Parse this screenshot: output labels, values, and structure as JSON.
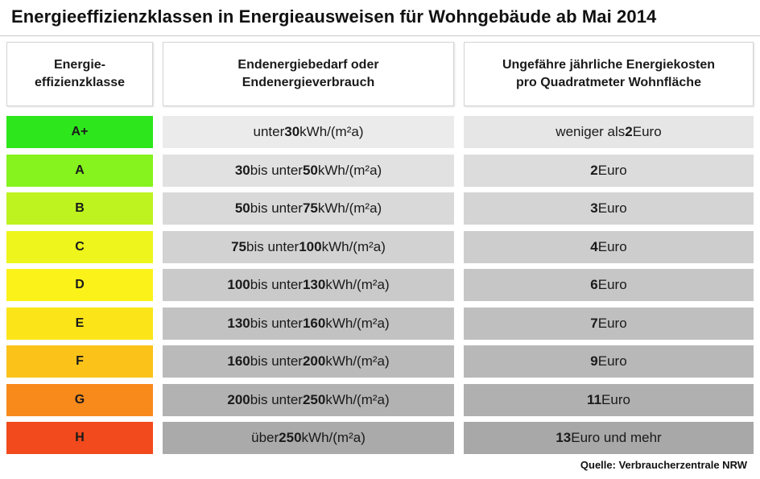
{
  "title": "Energieeffizienzklassen in Energieausweisen für Wohngebäude ab Mai 2014",
  "header": {
    "col1": [
      "Energie-",
      "effizienzklasse"
    ],
    "col2": [
      "Endenergiebedarf oder",
      "Endenergieverbrauch"
    ],
    "col3": [
      "Ungefähre jährliche Energiekosten",
      "pro Quadratmeter Wohnfläche"
    ]
  },
  "rows": [
    {
      "class": "A+",
      "class_color": "#2ee61c",
      "value_bg": "#ebebeb",
      "cost_bg": "#e6e6e6",
      "demand": "unter 30 kWh/(m²a)",
      "cost": "weniger als 2 Euro"
    },
    {
      "class": "A",
      "class_color": "#86f21e",
      "value_bg": "#e1e1e1",
      "cost_bg": "#dcdcdc",
      "demand": "30 bis unter 50 kWh/(m²a)",
      "cost": "2 Euro"
    },
    {
      "class": "B",
      "class_color": "#bef320",
      "value_bg": "#d9d9d9",
      "cost_bg": "#d4d4d4",
      "demand": "50 bis unter 75 kWh/(m²a)",
      "cost": "3 Euro"
    },
    {
      "class": "C",
      "class_color": "#eef51c",
      "value_bg": "#d2d2d2",
      "cost_bg": "#cdcdcd",
      "demand": "75 bis unter 100 kWh/(m²a)",
      "cost": "4 Euro"
    },
    {
      "class": "D",
      "class_color": "#fbf21a",
      "value_bg": "#cacaca",
      "cost_bg": "#c6c6c6",
      "demand": "100 bis unter 130 kWh/(m²a)",
      "cost": "6 Euro"
    },
    {
      "class": "E",
      "class_color": "#fbe519",
      "value_bg": "#c2c2c2",
      "cost_bg": "#bfbfbf",
      "demand": "130 bis unter 160 kWh/(m²a)",
      "cost": "7 Euro"
    },
    {
      "class": "F",
      "class_color": "#fbc21a",
      "value_bg": "#bababa",
      "cost_bg": "#b8b8b8",
      "demand": "160 bis unter 200 kWh/(m²a)",
      "cost": "9 Euro"
    },
    {
      "class": "G",
      "class_color": "#f88a1c",
      "value_bg": "#b2b2b2",
      "cost_bg": "#b0b0b0",
      "demand": "200 bis unter 250 kWh/(m²a)",
      "cost": "11 Euro"
    },
    {
      "class": "H",
      "class_color": "#f24a1c",
      "value_bg": "#aaaaaa",
      "cost_bg": "#a8a8a8",
      "demand": "über 250 kWh/(m²a)",
      "cost": "13 Euro und mehr"
    }
  ],
  "source": "Quelle: Verbraucherzentrale NRW"
}
